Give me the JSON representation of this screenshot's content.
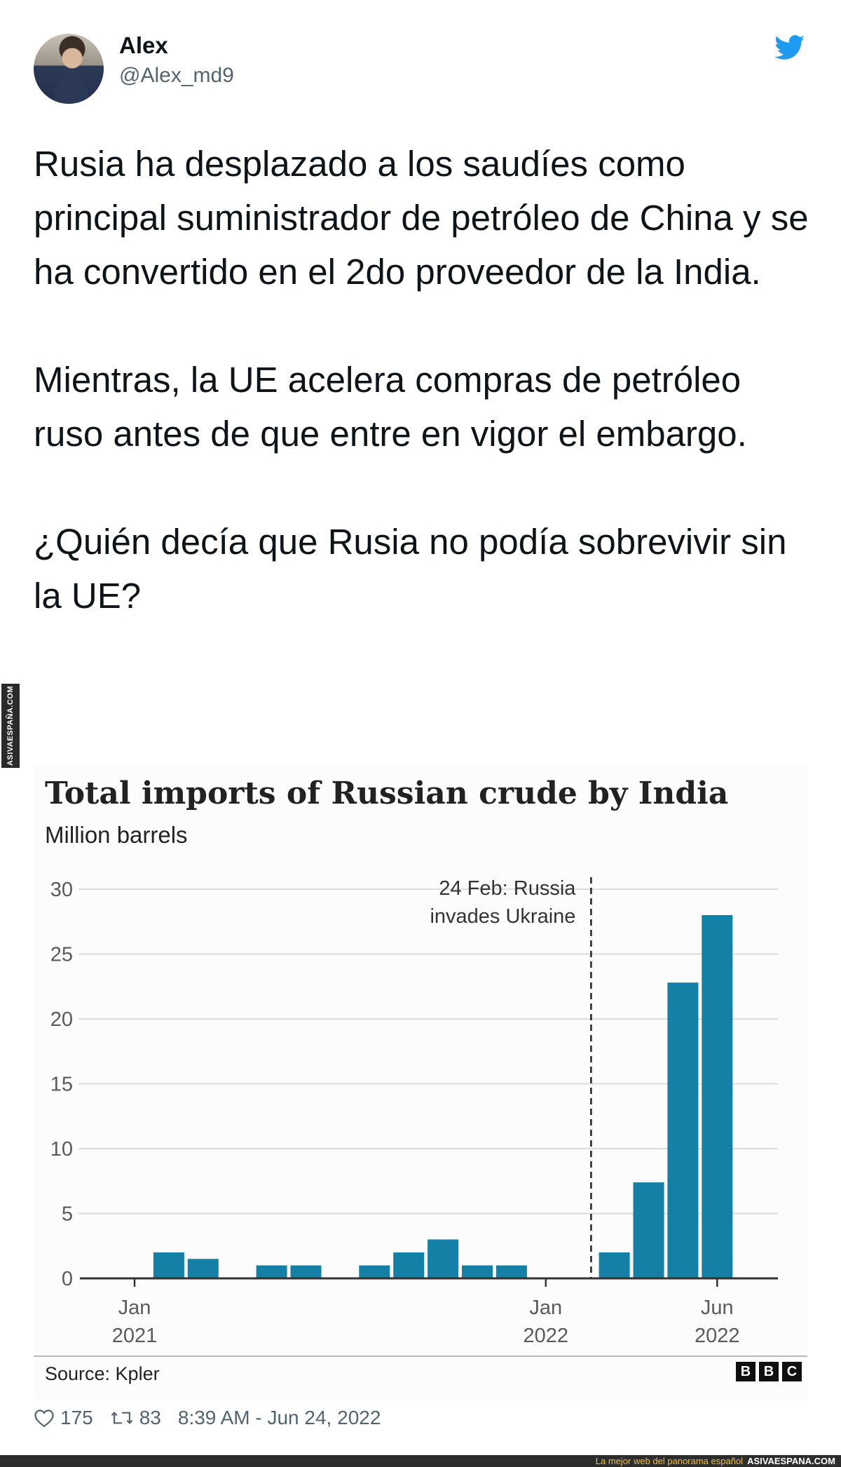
{
  "tweet": {
    "author_name": "Alex",
    "author_handle": "@Alex_md9",
    "paragraphs": [
      "Rusia ha desplazado a los saudíes como principal suministrador de petróleo de China y se ha convertido en el 2do proveedor de la India.",
      "Mientras, la UE acelera compras de petróleo ruso antes de que entre en vigor el embargo.",
      "¿Quién decía que Rusia no podía sobrevivir sin la UE?"
    ],
    "likes": "175",
    "retweets": "83",
    "timestamp": "8:39 AM - Jun 24, 2022",
    "brand_icon": "twitter-bird-icon",
    "accent_color": "#1d9bf0"
  },
  "chart_data": {
    "type": "bar",
    "title": "Total imports of Russian crude by India",
    "subtitle": "Million barrels",
    "source": "Source: Kpler",
    "logo_letters": [
      "B",
      "B",
      "C"
    ],
    "ylim": [
      0,
      30
    ],
    "yticks": [
      0,
      5,
      10,
      15,
      20,
      25,
      30
    ],
    "grid": true,
    "bar_color": "#1480a5",
    "x": [
      "2021-01",
      "2021-02",
      "2021-03",
      "2021-04",
      "2021-05",
      "2021-06",
      "2021-07",
      "2021-08",
      "2021-09",
      "2021-10",
      "2021-11",
      "2021-12",
      "2022-01",
      "2022-02",
      "2022-03",
      "2022-04",
      "2022-05",
      "2022-06"
    ],
    "values": [
      0,
      2,
      1.5,
      0,
      1,
      1,
      0,
      1,
      2,
      3,
      1,
      1,
      0,
      0,
      2,
      7.4,
      22.8,
      28
    ],
    "xtick_labels": [
      {
        "month": "Jan",
        "year": "2021",
        "at": "2021-01"
      },
      {
        "month": "Jan",
        "year": "2022",
        "at": "2022-01"
      },
      {
        "month": "Jun",
        "year": "2022",
        "at": "2022-06"
      }
    ],
    "annotation": {
      "text_line1": "24 Feb: Russia",
      "text_line2": "invades Ukraine",
      "date": "2022-02-24"
    }
  },
  "watermark": {
    "side_text": "ASIVAESPAÑA.COM",
    "footer_tagline": "La mejor web del panorama español",
    "footer_site": "ASIVAESPANA.COM"
  }
}
